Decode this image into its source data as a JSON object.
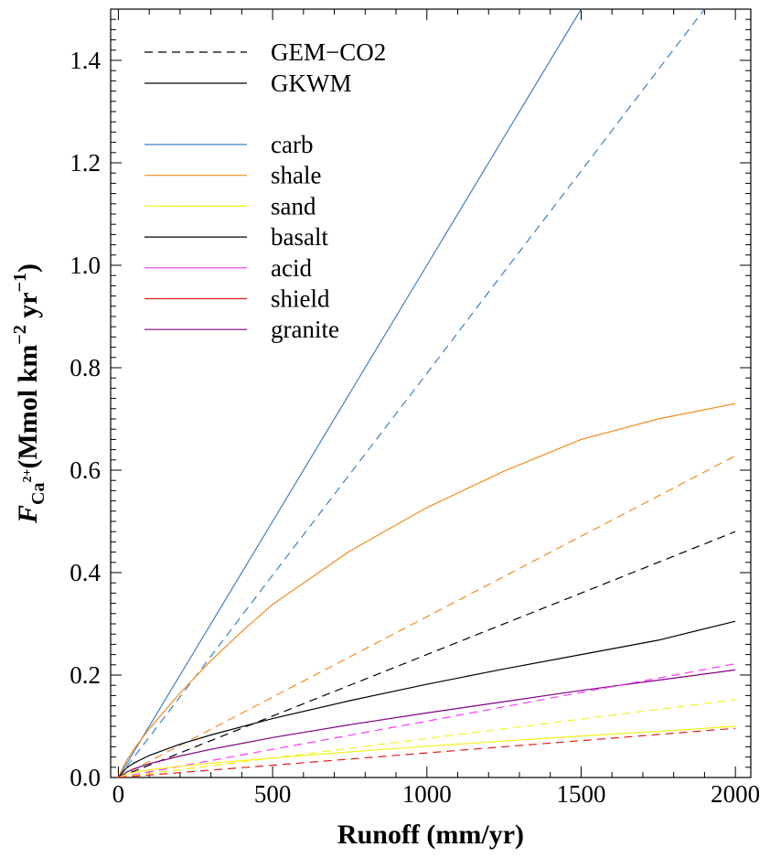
{
  "chart_data": {
    "type": "line",
    "xlabel": "Runoff (mm/yr)",
    "ylabel": {
      "prefix": "F",
      "subscript": "Ca",
      "superscript": "2+",
      "text": "(Mmol km",
      "exp1": "−2",
      "mid": " yr",
      "exp2": "−1",
      "close": ")"
    },
    "xlim": [
      -25,
      2050
    ],
    "ylim": [
      0,
      1.5
    ],
    "x_ticks": [
      {
        "value": 0,
        "label": "0"
      },
      {
        "value": 500,
        "label": "500"
      },
      {
        "value": 1000,
        "label": "1000"
      },
      {
        "value": 1500,
        "label": "1500"
      },
      {
        "value": 2000,
        "label": "2000"
      }
    ],
    "y_ticks": [
      {
        "value": 0.0,
        "label": "0.0"
      },
      {
        "value": 0.2,
        "label": "0.2"
      },
      {
        "value": 0.4,
        "label": "0.4"
      },
      {
        "value": 0.6,
        "label": "0.6"
      },
      {
        "value": 0.8,
        "label": "0.8"
      },
      {
        "value": 1.0,
        "label": "1.0"
      },
      {
        "value": 1.2,
        "label": "1.2"
      },
      {
        "value": 1.4,
        "label": "1.4"
      }
    ],
    "style_legend": [
      {
        "name": "GEM−CO2",
        "dashed": true,
        "color": "#000000"
      },
      {
        "name": "GKWM",
        "dashed": false,
        "color": "#000000"
      }
    ],
    "lithology_legend": [
      {
        "name": "carb",
        "color": "#3f7fbf"
      },
      {
        "name": "shale",
        "color": "#f28c1e"
      },
      {
        "name": "sand",
        "color": "#f2f21a"
      },
      {
        "name": "basalt",
        "color": "#000000"
      },
      {
        "name": "acid",
        "color": "#ff33ff"
      },
      {
        "name": "shield",
        "color": "#e01e1e"
      },
      {
        "name": "granite",
        "color": "#800080"
      }
    ],
    "series": [
      {
        "name": "carb",
        "model": "GKWM",
        "dashed": false,
        "color": "#3f7fbf",
        "x": [
          0,
          250,
          500,
          750,
          1000,
          1250,
          1500
        ],
        "y": [
          0,
          0.25,
          0.5,
          0.75,
          1.0,
          1.25,
          1.5
        ]
      },
      {
        "name": "carb",
        "model": "GEM−CO2",
        "dashed": true,
        "color": "#3f7fbf",
        "x": [
          0,
          250,
          500,
          750,
          1000,
          1250,
          1500,
          1750,
          1900
        ],
        "y": [
          0,
          0.197,
          0.395,
          0.592,
          0.789,
          0.987,
          1.184,
          1.382,
          1.5
        ]
      },
      {
        "name": "shale",
        "model": "GKWM",
        "dashed": false,
        "color": "#f28c1e",
        "x": [
          0,
          25,
          50,
          100,
          200,
          300,
          400,
          500,
          750,
          1000,
          1250,
          1500,
          1750,
          2000
        ],
        "y": [
          0,
          0.032,
          0.055,
          0.095,
          0.165,
          0.228,
          0.285,
          0.338,
          0.442,
          0.527,
          0.598,
          0.66,
          0.7,
          0.73
        ]
      },
      {
        "name": "shale",
        "model": "GEM−CO2",
        "dashed": true,
        "color": "#f28c1e",
        "x": [
          0,
          500,
          1000,
          1500,
          2000
        ],
        "y": [
          0,
          0.157,
          0.314,
          0.471,
          0.628
        ]
      },
      {
        "name": "basalt",
        "model": "GKWM",
        "dashed": false,
        "color": "#000000",
        "x": [
          0,
          25,
          50,
          100,
          200,
          300,
          500,
          750,
          1000,
          1250,
          1500,
          1750,
          2000
        ],
        "y": [
          0,
          0.018,
          0.028,
          0.043,
          0.065,
          0.083,
          0.115,
          0.15,
          0.182,
          0.212,
          0.24,
          0.268,
          0.305
        ]
      },
      {
        "name": "basalt",
        "model": "GEM−CO2",
        "dashed": true,
        "color": "#000000",
        "x": [
          0,
          500,
          1000,
          1500,
          2000
        ],
        "y": [
          0,
          0.12,
          0.24,
          0.36,
          0.48
        ]
      },
      {
        "name": "granite",
        "model": "GKWM",
        "dashed": false,
        "color": "#800080",
        "x": [
          0,
          25,
          50,
          100,
          200,
          300,
          500,
          750,
          1000,
          1250,
          1500,
          1750,
          2000
        ],
        "y": [
          0,
          0.01,
          0.017,
          0.027,
          0.042,
          0.055,
          0.078,
          0.103,
          0.126,
          0.148,
          0.17,
          0.19,
          0.21
        ]
      },
      {
        "name": "acid",
        "model": "GEM−CO2",
        "dashed": true,
        "color": "#ff33ff",
        "x": [
          0,
          500,
          1000,
          1500,
          2000
        ],
        "y": [
          0,
          0.055,
          0.11,
          0.166,
          0.222
        ]
      },
      {
        "name": "sand",
        "model": "GKWM",
        "dashed": false,
        "color": "#f2f21a",
        "x": [
          0,
          25,
          50,
          100,
          200,
          300,
          500,
          750,
          1000,
          1250,
          1500,
          1750,
          2000
        ],
        "y": [
          0,
          0.006,
          0.01,
          0.015,
          0.022,
          0.028,
          0.038,
          0.05,
          0.061,
          0.071,
          0.081,
          0.09,
          0.1
        ]
      },
      {
        "name": "sand",
        "model": "GEM−CO2",
        "dashed": true,
        "color": "#f2f21a",
        "x": [
          0,
          500,
          1000,
          1500,
          2000
        ],
        "y": [
          0,
          0.038,
          0.076,
          0.114,
          0.152
        ]
      },
      {
        "name": "shield",
        "model": "GEM−CO2",
        "dashed": true,
        "color": "#e01e1e",
        "x": [
          0,
          500,
          1000,
          1500,
          2000
        ],
        "y": [
          0,
          0.024,
          0.048,
          0.072,
          0.096
        ]
      }
    ]
  }
}
